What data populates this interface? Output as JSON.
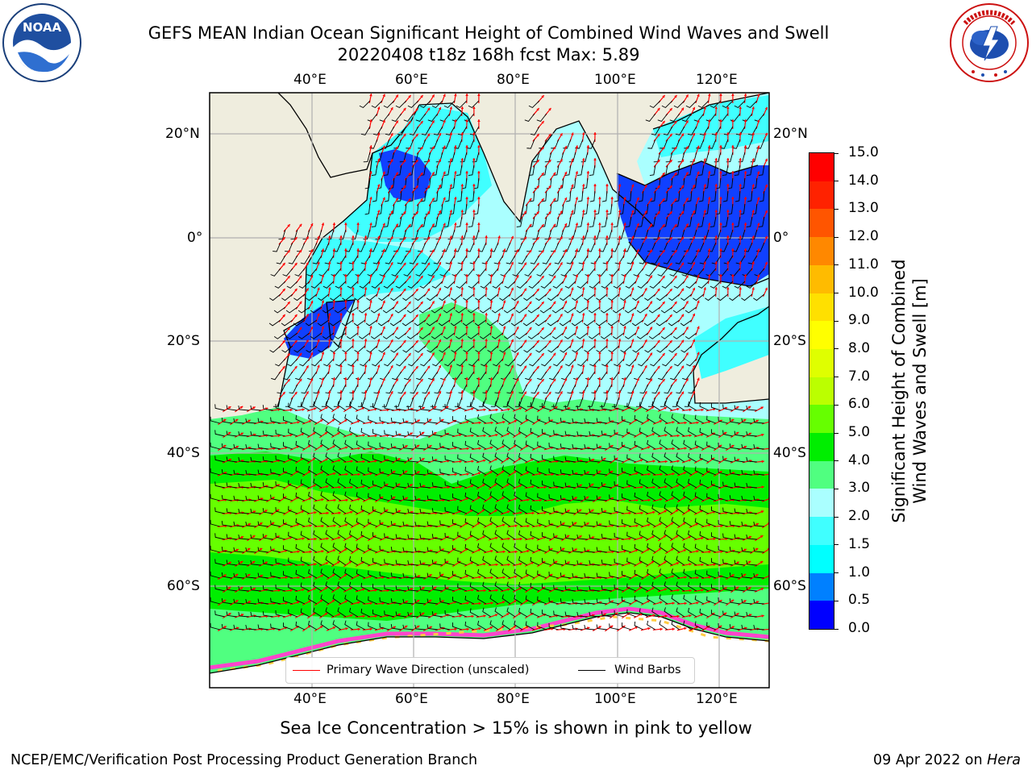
{
  "header": {
    "title_line1": "GEFS MEAN Indian Ocean Significant Height of Combined Wind Waves and Swell",
    "title_line2": "20220408 t18z 168h fcst   Max: 5.89"
  },
  "logos": {
    "left": {
      "icon": "noaa-logo",
      "text": "NOAA",
      "ring_text": "NATIONAL OCEANIC AND ATMOSPHERIC ADMINISTRATION · U.S. DEPARTMENT OF COMMERCE"
    },
    "right": {
      "icon": "nws-logo",
      "ring_text": "NATIONAL WEATHER SERVICE"
    }
  },
  "map": {
    "top_lon_labels": [
      "40°E",
      "60°E",
      "80°E",
      "100°E",
      "120°E"
    ],
    "bottom_lon_labels": [
      "40°E",
      "60°E",
      "80°E",
      "100°E",
      "120°E"
    ],
    "left_lat_labels": [
      "20°N",
      "0°",
      "20°S",
      "40°S",
      "60°S"
    ],
    "right_lat_labels": [
      "20°N",
      "0°",
      "20°S",
      "40°S",
      "60°S"
    ],
    "legend": {
      "items": [
        {
          "label": "Primary Wave Direction (unscaled)",
          "color": "#ff0000"
        },
        {
          "label": "Wind Barbs",
          "color": "#000000"
        }
      ]
    },
    "colors": {
      "land": "#efedde",
      "ice": [
        "#ff44cc",
        "#ffaaff",
        "#ffcc44",
        "#ff8800"
      ]
    }
  },
  "colorbar": {
    "ticks": [
      "15.0",
      "14.0",
      "13.0",
      "12.0",
      "11.0",
      "10.0",
      "9.0",
      "8.0",
      "7.0",
      "6.0",
      "5.0",
      "4.0",
      "3.0",
      "2.0",
      "1.5",
      "1.0",
      "0.5",
      "0.0"
    ],
    "colors": [
      "#0000ff",
      "#0080ff",
      "#00ffff",
      "#40ffff",
      "#aaffff",
      "#50ff80",
      "#00ee00",
      "#66ff00",
      "#bbff00",
      "#dfff00",
      "#ffff00",
      "#ffe000",
      "#ffbb00",
      "#ff8800",
      "#ff5500",
      "#ff2200",
      "#ff0000"
    ],
    "label_line1": "Significant Height of Combined",
    "label_line2": "Wind Waves and Swell [m]"
  },
  "caption": "Sea Ice Concentration > 15% is shown in pink to yellow",
  "footer": {
    "left": "NCEP/EMC/Verification Post Processing Product Generation Branch",
    "right_prefix": "09 Apr 2022 on ",
    "right_host": "Hera"
  }
}
